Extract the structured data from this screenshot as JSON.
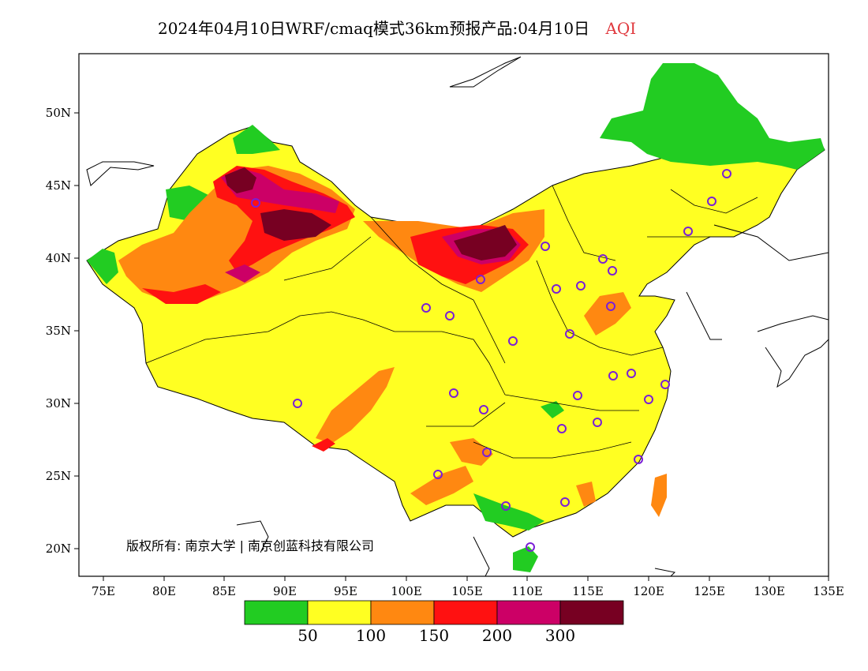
{
  "title": {
    "main": "2024年04月10日WRF/cmaq模式36km预报产品:04月10日",
    "variable": "AQI"
  },
  "map": {
    "x_ticks": [
      "75E",
      "80E",
      "85E",
      "90E",
      "95E",
      "100E",
      "105E",
      "110E",
      "115E",
      "120E",
      "125E",
      "130E",
      "135E"
    ],
    "y_ticks": [
      "20N",
      "25N",
      "30N",
      "35N",
      "40N",
      "45N",
      "50N"
    ],
    "copyright": "版权所有: 南京大学 | 南京创蓝科技有限公司"
  },
  "legend": {
    "colors": [
      "#22cc22",
      "#ffff22",
      "#ff8811",
      "#ff1111",
      "#cc0066",
      "#770022"
    ],
    "labels": [
      "50",
      "100",
      "150",
      "200",
      "300"
    ]
  }
}
